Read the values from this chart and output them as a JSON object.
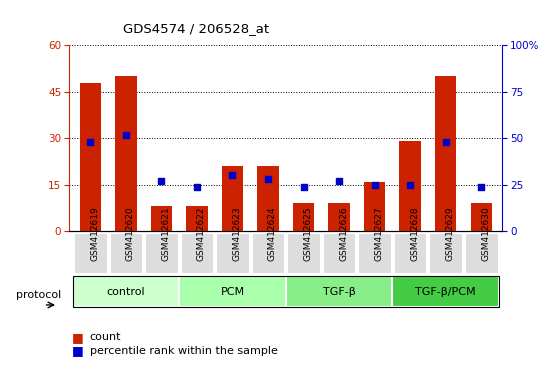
{
  "title": "GDS4574 / 206528_at",
  "samples": [
    "GSM412619",
    "GSM412620",
    "GSM412621",
    "GSM412622",
    "GSM412623",
    "GSM412624",
    "GSM412625",
    "GSM412626",
    "GSM412627",
    "GSM412628",
    "GSM412629",
    "GSM412630"
  ],
  "count": [
    48,
    50,
    8,
    8,
    21,
    21,
    9,
    9,
    16,
    29,
    50,
    9
  ],
  "percentile": [
    48,
    52,
    27,
    24,
    30,
    28,
    24,
    27,
    25,
    25,
    48,
    24
  ],
  "groups": [
    {
      "label": "control",
      "start": 0,
      "end": 3,
      "color": "#ccffcc"
    },
    {
      "label": "PCM",
      "start": 3,
      "end": 6,
      "color": "#aaffaa"
    },
    {
      "label": "TGF-β",
      "start": 6,
      "end": 9,
      "color": "#88ee88"
    },
    {
      "label": "TGF-β/PCM",
      "start": 9,
      "end": 12,
      "color": "#44cc44"
    }
  ],
  "ylim_left": [
    0,
    60
  ],
  "ylim_right": [
    0,
    100
  ],
  "yticks_left": [
    0,
    15,
    30,
    45,
    60
  ],
  "yticks_right": [
    0,
    25,
    50,
    75,
    100
  ],
  "bar_color": "#cc2200",
  "dot_color": "#0000cc",
  "bg_color": "#ffffff",
  "protocol_label": "protocol",
  "legend_count": "count",
  "legend_pct": "percentile rank within the sample",
  "tick_bg_color": "#dddddd"
}
